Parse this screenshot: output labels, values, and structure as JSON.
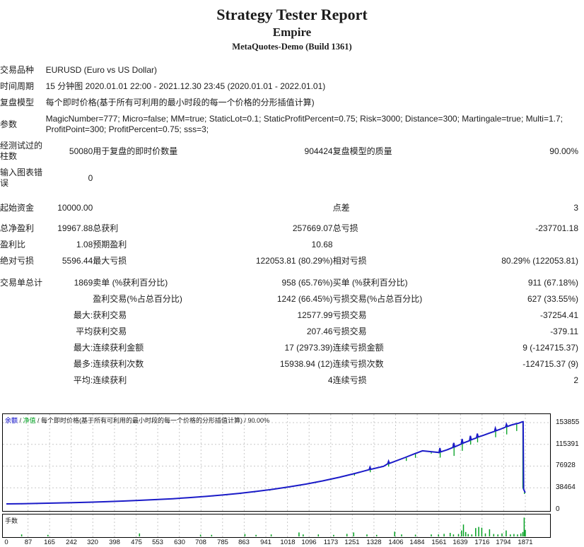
{
  "header": {
    "title": "Strategy Tester Report",
    "expert_name": "Empire",
    "server": "MetaQuotes-Demo (Build 1361)"
  },
  "table": {
    "r0": {
      "l": "交易品种",
      "v": "EURUSD (Euro vs US Dollar)"
    },
    "r1": {
      "l": "时间周期",
      "v": "15 分钟图 2020.01.01 22:00 - 2021.12.30 23:45 (2020.01.01 - 2022.01.01)"
    },
    "r2": {
      "l": "复盘模型",
      "v": "每个即时价格(基于所有可利用的最小时段的每一个价格的分形插值计算)"
    },
    "r3": {
      "l": "参数",
      "v": "MagicNumber=777; Micro=false; MM=true; StaticLot=0.1; StaticProfitPercent=0.75; Risk=3000; Distance=300; Martingale=true; Multi=1.7; ProfitPoint=300; ProfitPercent=0.75; sss=3;"
    },
    "r4": {
      "l": "经测试过的柱数",
      "v1": "50080",
      "l2": "用于复盘的即时价数量",
      "v2": "904424",
      "l3": "复盘模型的质量",
      "v3": "90.00%"
    },
    "r5": {
      "l": "输入图表错误",
      "v1": "0"
    },
    "r6": {
      "l": "起始资金",
      "v1": "10000.00",
      "l3": "点差",
      "v3": "3"
    },
    "r7": {
      "l": "总净盈利",
      "v1": "19967.88",
      "l2": "总获利",
      "v2": "257669.07",
      "l3": "总亏损",
      "v3": "-237701.18"
    },
    "r8": {
      "l": "盈利比",
      "v1": "1.08",
      "l2": "预期盈利",
      "v2": "10.68"
    },
    "r9": {
      "l": "绝对亏损",
      "v1": "5596.44",
      "l2": "最大亏损",
      "v2": "122053.81 (80.29%)",
      "l3": "相对亏损",
      "v3": "80.29% (122053.81)"
    },
    "r10": {
      "l": "交易单总计",
      "v1": "1869",
      "l2": "卖单 (%获利百分比)",
      "v2": "958 (65.76%)",
      "l3": "买单 (%获利百分比)",
      "v3": "911 (67.18%)"
    },
    "r11": {
      "l2": "盈利交易(%占总百分比)",
      "v2": "1242 (66.45%)",
      "l3": "亏损交易(%占总百分比)",
      "v3": "627 (33.55%)"
    },
    "r12": {
      "v1": "最大:",
      "l2": "获利交易",
      "v2": "12577.99",
      "l3": "亏损交易",
      "v3": "-37254.41"
    },
    "r13": {
      "v1": "平均",
      "l2": "获利交易",
      "v2": "207.46",
      "l3": "亏损交易",
      "v3": "-379.11"
    },
    "r14": {
      "v1": "最大:",
      "l2": "连续获利金额",
      "v2": "17 (2973.39)",
      "l3": "连续亏损金额",
      "v3": "9 (-124715.37)"
    },
    "r15": {
      "v1": "最多:",
      "l2": "连续获利次数",
      "v2": "15938.94 (12)",
      "l3": "连续亏损次数",
      "v3": "-124715.37 (9)"
    },
    "r16": {
      "v1": "平均:",
      "l2": "连续获利",
      "v2": "4",
      "l3": "连续亏损",
      "v3": "2"
    }
  },
  "chart_data": {
    "type": "line",
    "legend": {
      "balance": "余额",
      "sep": " / ",
      "equity": "净值",
      "rest": " / 每个即时价格(基于所有可利用的最小时段的每一个价格的分形插值计算) / 90.00%"
    },
    "lot_label": "手数",
    "y_ticks": [
      153855,
      115391,
      76928,
      38464,
      0
    ],
    "x_ticks": [
      0,
      87,
      165,
      242,
      320,
      398,
      475,
      553,
      630,
      708,
      785,
      863,
      941,
      1018,
      1096,
      1173,
      1251,
      1328,
      1406,
      1484,
      1561,
      1639,
      1716,
      1794,
      1871
    ],
    "x_max": 1871,
    "y_top": 153855,
    "ylim": [
      0,
      168000
    ],
    "colors": {
      "balance": "#1b1bc8",
      "equity": "#00a020",
      "grid": "#c8c8c8",
      "balance_label": "#0000c8",
      "equity_label": "#00a020"
    },
    "balance_series": [
      [
        0,
        10000
      ],
      [
        60,
        10400
      ],
      [
        120,
        10900
      ],
      [
        180,
        11500
      ],
      [
        240,
        12200
      ],
      [
        300,
        13000
      ],
      [
        360,
        13900
      ],
      [
        420,
        15000
      ],
      [
        480,
        16200
      ],
      [
        540,
        17600
      ],
      [
        600,
        19200
      ],
      [
        660,
        21100
      ],
      [
        720,
        23300
      ],
      [
        780,
        25800
      ],
      [
        840,
        28700
      ],
      [
        900,
        32000
      ],
      [
        960,
        35800
      ],
      [
        1020,
        40100
      ],
      [
        1080,
        45000
      ],
      [
        1140,
        50600
      ],
      [
        1200,
        57000
      ],
      [
        1260,
        64300
      ],
      [
        1308,
        70500
      ],
      [
        1311,
        75000
      ],
      [
        1314,
        71200
      ],
      [
        1360,
        76500
      ],
      [
        1375,
        81000
      ],
      [
        1378,
        85500
      ],
      [
        1381,
        81700
      ],
      [
        1440,
        92600
      ],
      [
        1470,
        98400
      ],
      [
        1500,
        104000
      ],
      [
        1560,
        101000
      ],
      [
        1563,
        109000
      ],
      [
        1566,
        102000
      ],
      [
        1590,
        106000
      ],
      [
        1610,
        110000
      ],
      [
        1613,
        118000
      ],
      [
        1616,
        111000
      ],
      [
        1640,
        116000
      ],
      [
        1643,
        125000
      ],
      [
        1646,
        117500
      ],
      [
        1670,
        122000
      ],
      [
        1673,
        130500
      ],
      [
        1676,
        123500
      ],
      [
        1695,
        127000
      ],
      [
        1698,
        134500
      ],
      [
        1701,
        128500
      ],
      [
        1720,
        131500
      ],
      [
        1740,
        135000
      ],
      [
        1760,
        138500
      ],
      [
        1763,
        144000
      ],
      [
        1766,
        139500
      ],
      [
        1780,
        142000
      ],
      [
        1800,
        146000
      ],
      [
        1803,
        151000
      ],
      [
        1806,
        147000
      ],
      [
        1820,
        149500
      ],
      [
        1835,
        151500
      ],
      [
        1848,
        153000
      ],
      [
        1858,
        154800
      ],
      [
        1862,
        155500
      ],
      [
        1863,
        155500
      ],
      [
        1865,
        35500
      ],
      [
        1867,
        34000
      ],
      [
        1869,
        31500
      ],
      [
        1871,
        29968
      ]
    ],
    "equity_dips": [
      [
        55,
        9000
      ],
      [
        110,
        9300
      ],
      [
        225,
        11600
      ],
      [
        300,
        12200
      ],
      [
        470,
        15400
      ],
      [
        540,
        16700
      ],
      [
        610,
        18300
      ],
      [
        700,
        21500
      ],
      [
        745,
        23000
      ],
      [
        795,
        24800
      ],
      [
        845,
        27300
      ],
      [
        895,
        30000
      ],
      [
        950,
        33300
      ],
      [
        1005,
        37000
      ],
      [
        1060,
        41500
      ],
      [
        1115,
        46500
      ],
      [
        1170,
        52200
      ],
      [
        1225,
        58700
      ],
      [
        1255,
        60000
      ],
      [
        1312,
        66000
      ],
      [
        1378,
        76000
      ],
      [
        1442,
        86000
      ],
      [
        1475,
        91500
      ],
      [
        1532,
        99000
      ],
      [
        1564,
        92000
      ],
      [
        1614,
        95000
      ],
      [
        1644,
        104000
      ],
      [
        1674,
        115000
      ],
      [
        1699,
        119000
      ],
      [
        1764,
        128000
      ],
      [
        1804,
        133000
      ],
      [
        1840,
        139000
      ],
      [
        1862,
        37000
      ],
      [
        1868,
        27500
      ]
    ],
    "lot_bars": [
      [
        55,
        0.1
      ],
      [
        150,
        0.08
      ],
      [
        480,
        0.15
      ],
      [
        700,
        0.09
      ],
      [
        740,
        0.08
      ],
      [
        860,
        0.12
      ],
      [
        900,
        0.08
      ],
      [
        955,
        0.1
      ],
      [
        1055,
        0.2
      ],
      [
        1070,
        0.1
      ],
      [
        1125,
        0.1
      ],
      [
        1180,
        0.08
      ],
      [
        1228,
        0.13
      ],
      [
        1252,
        0.2
      ],
      [
        1300,
        0.1
      ],
      [
        1335,
        0.08
      ],
      [
        1400,
        0.24
      ],
      [
        1425,
        0.1
      ],
      [
        1475,
        0.09
      ],
      [
        1532,
        0.1
      ],
      [
        1558,
        0.1
      ],
      [
        1578,
        0.13
      ],
      [
        1600,
        0.18
      ],
      [
        1612,
        0.1
      ],
      [
        1630,
        0.12
      ],
      [
        1641,
        0.3
      ],
      [
        1648,
        0.6
      ],
      [
        1656,
        0.22
      ],
      [
        1665,
        0.12
      ],
      [
        1678,
        0.1
      ],
      [
        1692,
        0.42
      ],
      [
        1703,
        0.48
      ],
      [
        1714,
        0.44
      ],
      [
        1727,
        0.15
      ],
      [
        1742,
        0.36
      ],
      [
        1757,
        0.12
      ],
      [
        1772,
        0.1
      ],
      [
        1787,
        0.15
      ],
      [
        1802,
        0.3
      ],
      [
        1817,
        0.1
      ],
      [
        1830,
        0.12
      ],
      [
        1843,
        0.1
      ],
      [
        1855,
        0.15
      ],
      [
        1862,
        0.22
      ],
      [
        1867,
        0.95
      ],
      [
        1871,
        0.32
      ]
    ]
  }
}
